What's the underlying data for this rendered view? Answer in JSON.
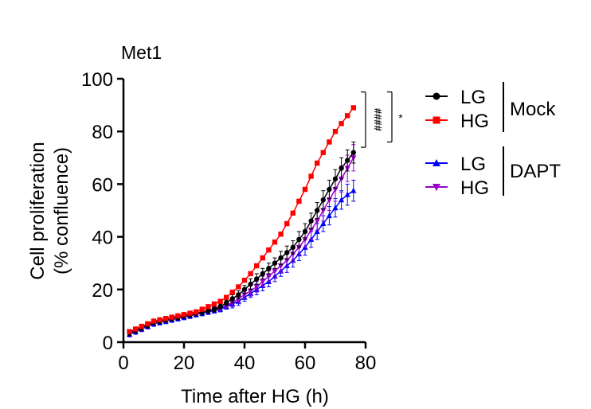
{
  "chart_data": {
    "type": "line",
    "title": "Met1",
    "xlabel": "Time after HG (h)",
    "ylabel_line1": "Cell proliferation",
    "ylabel_line2": "(% confluence)",
    "xlim": [
      0,
      80
    ],
    "ylim": [
      0,
      100
    ],
    "xticks": [
      0,
      20,
      40,
      60,
      80
    ],
    "yticks": [
      0,
      20,
      40,
      60,
      80,
      100
    ],
    "x": [
      2,
      4,
      6,
      8,
      10,
      12,
      14,
      16,
      18,
      20,
      22,
      24,
      26,
      28,
      30,
      32,
      34,
      36,
      38,
      40,
      42,
      44,
      46,
      48,
      50,
      52,
      54,
      56,
      58,
      60,
      62,
      64,
      66,
      68,
      70,
      72,
      74,
      76
    ],
    "series": [
      {
        "name": "LG",
        "group": "Mock",
        "marker": "circle",
        "color": "#000000",
        "values": [
          3.5,
          4.5,
          5.5,
          6.5,
          7.5,
          8,
          8.5,
          9,
          9.5,
          10,
          10.5,
          11,
          11.5,
          12,
          12.5,
          13.5,
          15,
          16.5,
          18,
          20,
          22,
          24,
          26,
          28,
          30,
          32,
          34,
          36,
          39,
          42,
          46,
          50,
          54,
          58,
          62,
          66,
          69,
          72
        ],
        "errors": [
          1,
          1,
          1,
          1,
          1,
          1,
          1,
          1,
          1,
          1,
          1,
          1,
          1,
          1,
          1,
          1,
          1,
          1.5,
          1.5,
          1.5,
          2,
          2,
          2,
          2,
          2,
          2.5,
          2.5,
          2.5,
          3,
          3,
          3,
          3,
          3.5,
          3.5,
          3.5,
          4,
          4,
          4
        ]
      },
      {
        "name": "HG",
        "group": "Mock",
        "marker": "square",
        "color": "#ff0000",
        "values": [
          4,
          5,
          6,
          7,
          8,
          8.5,
          9,
          9.5,
          10,
          10.5,
          11,
          11.5,
          12.5,
          13.5,
          14.5,
          15.5,
          17,
          19,
          21,
          23.5,
          26,
          29,
          32,
          35,
          38,
          41,
          45,
          49,
          53.5,
          58,
          63,
          68,
          72,
          76,
          80,
          83,
          86,
          89
        ]
      },
      {
        "name": "LG",
        "group": "DAPT",
        "marker": "triangle-up",
        "color": "#0000ff",
        "values": [
          3,
          4,
          5,
          6,
          7,
          7.5,
          8,
          8.5,
          9,
          9.5,
          10,
          10.5,
          11,
          11.5,
          12,
          12.5,
          13.5,
          14.5,
          15.5,
          17,
          18.5,
          20,
          21.5,
          23,
          25,
          27,
          29,
          31,
          33.5,
          36,
          39,
          42,
          45,
          48,
          51,
          54,
          56,
          57.5
        ],
        "errors": [
          1,
          1,
          1,
          1,
          1,
          1,
          1,
          1,
          1,
          1,
          1,
          1,
          1,
          1,
          1,
          1,
          1,
          1.5,
          1.5,
          1.5,
          1.5,
          2,
          2,
          2,
          2,
          2,
          2.5,
          2.5,
          2.5,
          3,
          3,
          3,
          3,
          3.5,
          3.5,
          3.5,
          4,
          4
        ]
      },
      {
        "name": "HG",
        "group": "DAPT",
        "marker": "triangle-down",
        "color": "#9900cc",
        "values": [
          3.5,
          4.5,
          5.5,
          6.5,
          7.5,
          8,
          8.5,
          9,
          9.5,
          10,
          10.5,
          11,
          11.5,
          12,
          12.5,
          13,
          14,
          15,
          16.5,
          18,
          19.5,
          21,
          23,
          25,
          27,
          29,
          31,
          33.5,
          36,
          39,
          42.5,
          46,
          50,
          54,
          58,
          62,
          66,
          70
        ],
        "errors": [
          1,
          1,
          1,
          1,
          1,
          1,
          1,
          1,
          1,
          1,
          1,
          1,
          1,
          1,
          1,
          1,
          1,
          1.5,
          1.5,
          1.5,
          2,
          2,
          2,
          2,
          2.5,
          2.5,
          2.5,
          3,
          3,
          3,
          3.5,
          3.5,
          4,
          4,
          4.5,
          5,
          5,
          5
        ]
      }
    ],
    "significance": [
      "####",
      "*"
    ],
    "legend": {
      "groups": [
        "Mock",
        "DAPT"
      ],
      "entries": [
        "LG",
        "HG",
        "LG",
        "HG"
      ]
    }
  }
}
